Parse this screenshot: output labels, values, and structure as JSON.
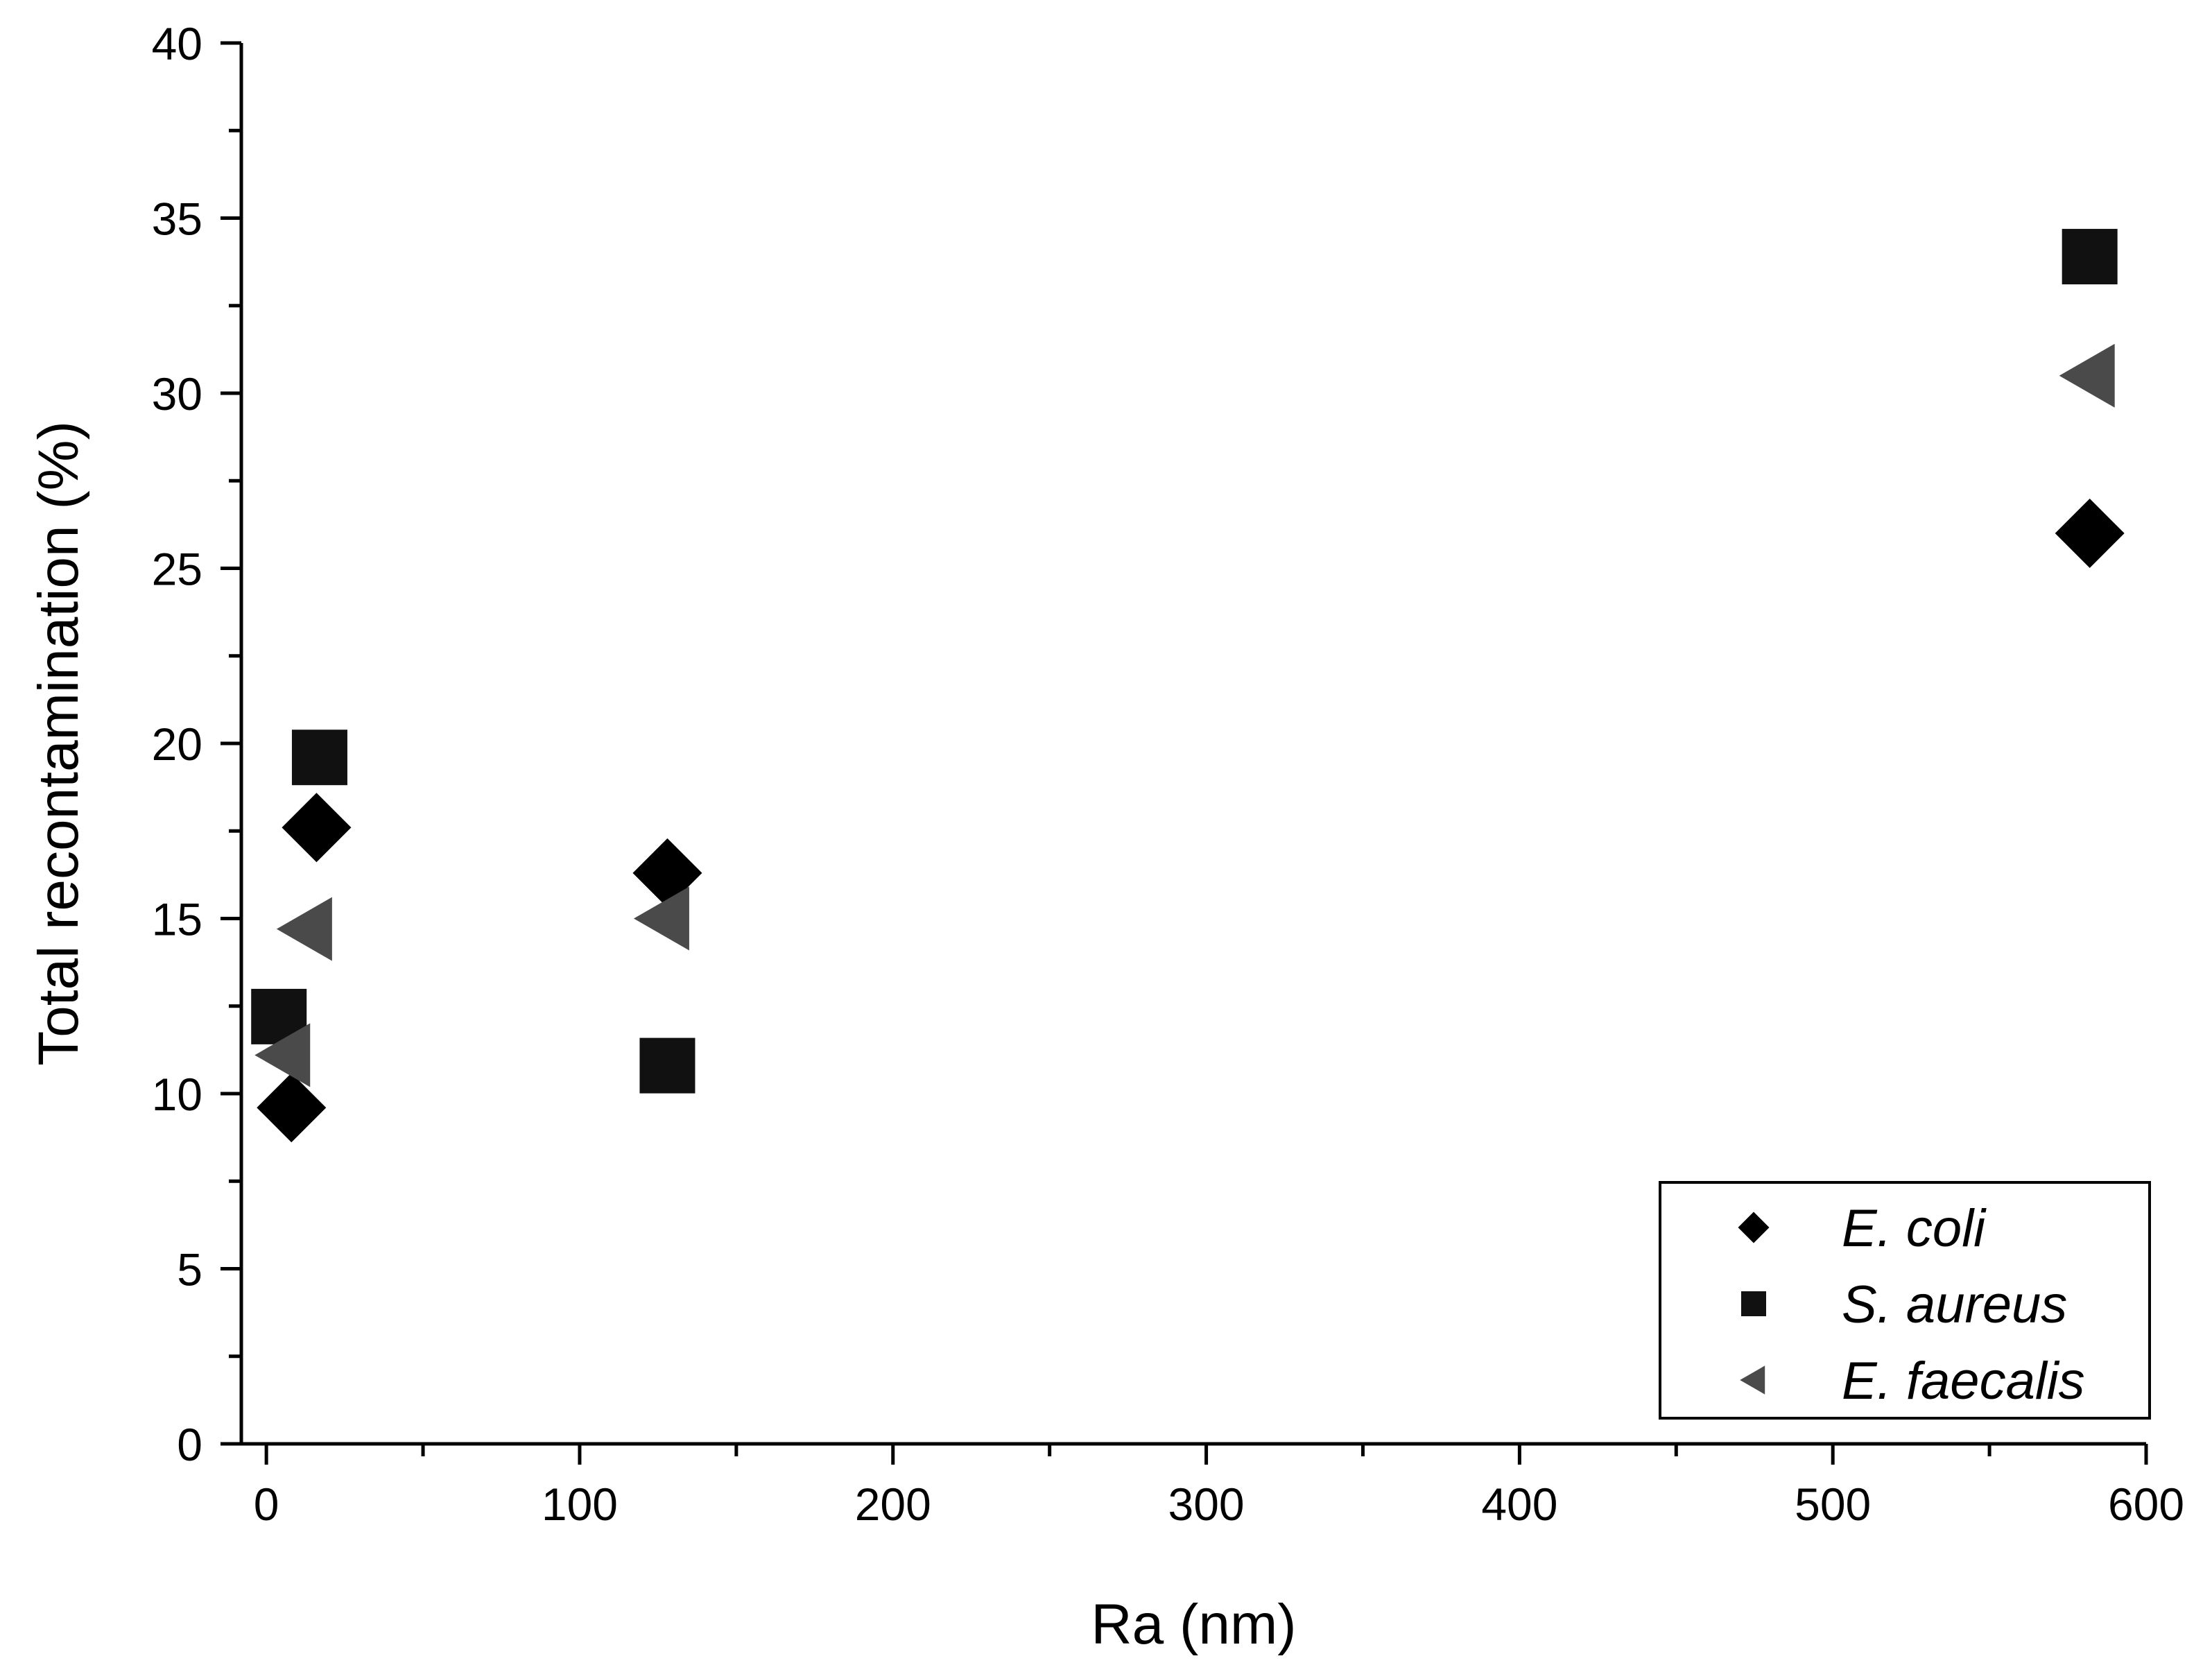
{
  "chart_data": {
    "type": "scatter",
    "title": "",
    "xlabel": "Ra (nm)",
    "ylabel": "Total recontamination (%)",
    "xlim": [
      -8,
      600
    ],
    "ylim": [
      0,
      40
    ],
    "xticks": [
      0,
      100,
      200,
      300,
      400,
      500,
      600
    ],
    "yticks": [
      0,
      5,
      10,
      15,
      20,
      25,
      30,
      35,
      40
    ],
    "x_minor_step": 50,
    "y_minor_step": 2.5,
    "grid": false,
    "legend_position": "bottom-right",
    "series": [
      {
        "name": "E. coli",
        "marker": "diamond",
        "color": "#000000",
        "points": [
          [
            8,
            9.6
          ],
          [
            16,
            17.6
          ],
          [
            128,
            16.3
          ],
          [
            582,
            26.0
          ]
        ]
      },
      {
        "name": "S. aureus",
        "marker": "square",
        "color": "#111111",
        "points": [
          [
            4,
            12.2
          ],
          [
            17,
            19.6
          ],
          [
            128,
            10.8
          ],
          [
            582,
            33.9
          ]
        ]
      },
      {
        "name": "E. faecalis",
        "marker": "triangle-left",
        "color": "#4a4a4a",
        "points": [
          [
            6,
            11.1
          ],
          [
            13,
            14.7
          ],
          [
            127,
            15.0
          ],
          [
            582,
            30.5
          ]
        ]
      }
    ]
  }
}
